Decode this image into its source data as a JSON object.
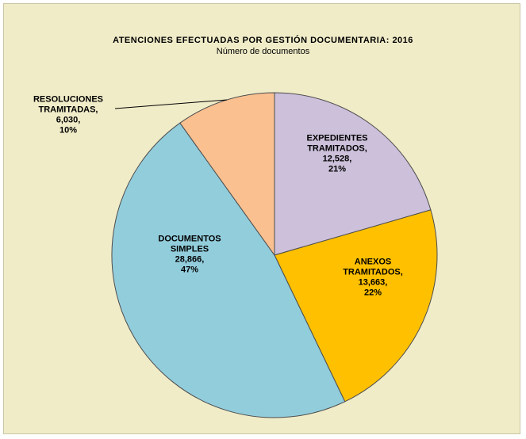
{
  "chart_data": {
    "type": "pie",
    "title": "ATENCIONES  EFECTUADAS  POR  GESTIÓN  DOCUMENTARIA:  2016",
    "subtitle": "Número  de  documentos",
    "slices": [
      {
        "label_lines": [
          "EXPEDIENTES",
          "TRAMITADOS,",
          "12,528,",
          "21%"
        ],
        "value": 12528,
        "percent": 21,
        "color": "#ccc0da"
      },
      {
        "label_lines": [
          "ANEXOS",
          "TRAMITADOS,",
          "13,663,",
          "22%"
        ],
        "value": 13663,
        "percent": 22,
        "color": "#ffc000"
      },
      {
        "label_lines": [
          "DOCUMENTOS",
          "SIMPLES",
          "28,866,",
          "47%"
        ],
        "value": 28866,
        "percent": 47,
        "color": "#92cddc"
      },
      {
        "label_lines": [
          "RESOLUCIONES",
          "TRAMITADAS,",
          "6,030,",
          "10%"
        ],
        "value": 6030,
        "percent": 10,
        "color": "#fac090"
      }
    ],
    "start_angle": "12 o'clock",
    "direction": "clockwise",
    "legend": "none",
    "border_color": "#4d4d4d"
  }
}
